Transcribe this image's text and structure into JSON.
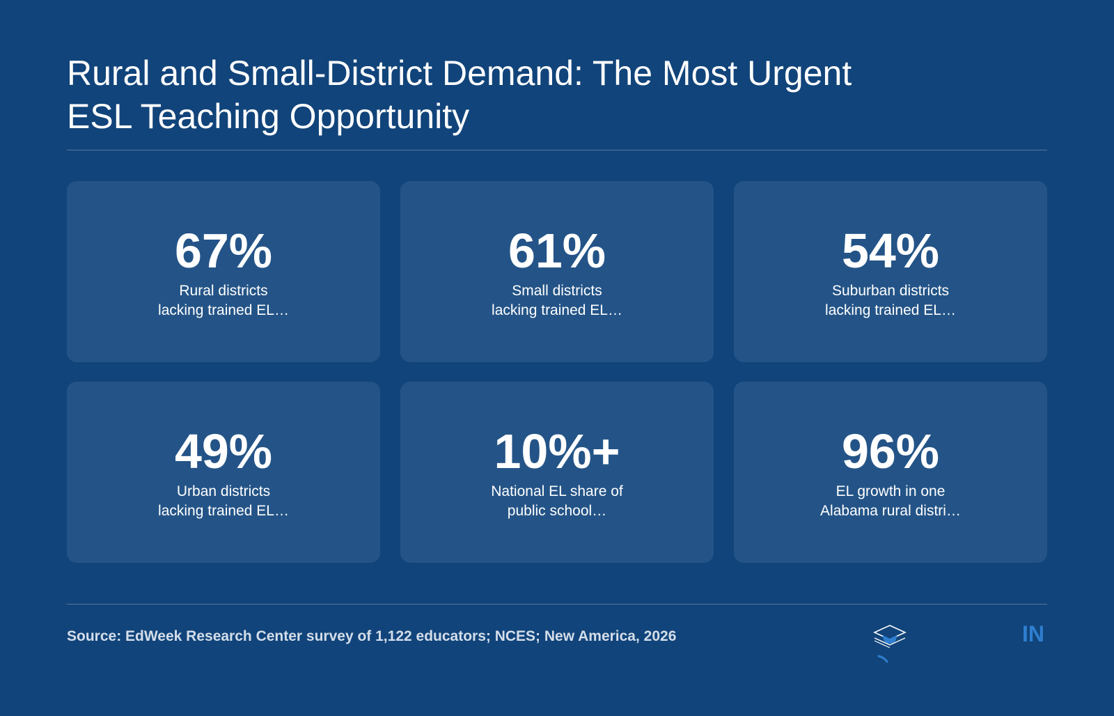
{
  "slide": {
    "title_line1": "Rural and Small-District Demand: The Most Urgent",
    "title_line2": "ESL Teaching Opportunity"
  },
  "stats": [
    {
      "value": "67%",
      "label_line1": "Rural districts",
      "label_line2": "lacking trained EL…"
    },
    {
      "value": "61%",
      "label_line1": "Small districts",
      "label_line2": "lacking trained EL…"
    },
    {
      "value": "54%",
      "label_line1": "Suburban districts",
      "label_line2": "lacking trained EL…"
    },
    {
      "value": "49%",
      "label_line1": "Urban districts",
      "label_line2": "lacking trained EL…"
    },
    {
      "value": "10%+",
      "label_line1": "National EL share of",
      "label_line2": "public school…"
    },
    {
      "value": "96%",
      "label_line1": "EL growth in one",
      "label_line2": "Alabama rural distri…"
    }
  ],
  "footer": {
    "source": "Source: EdWeek Research Center survey of 1,122 educators; NCES; New America, 2026",
    "logo_text": "IN",
    "logo_icon": "graduation-cap-icon"
  },
  "colors": {
    "background": "#11447a",
    "card": "#245487",
    "accent": "#2f7fd0"
  }
}
